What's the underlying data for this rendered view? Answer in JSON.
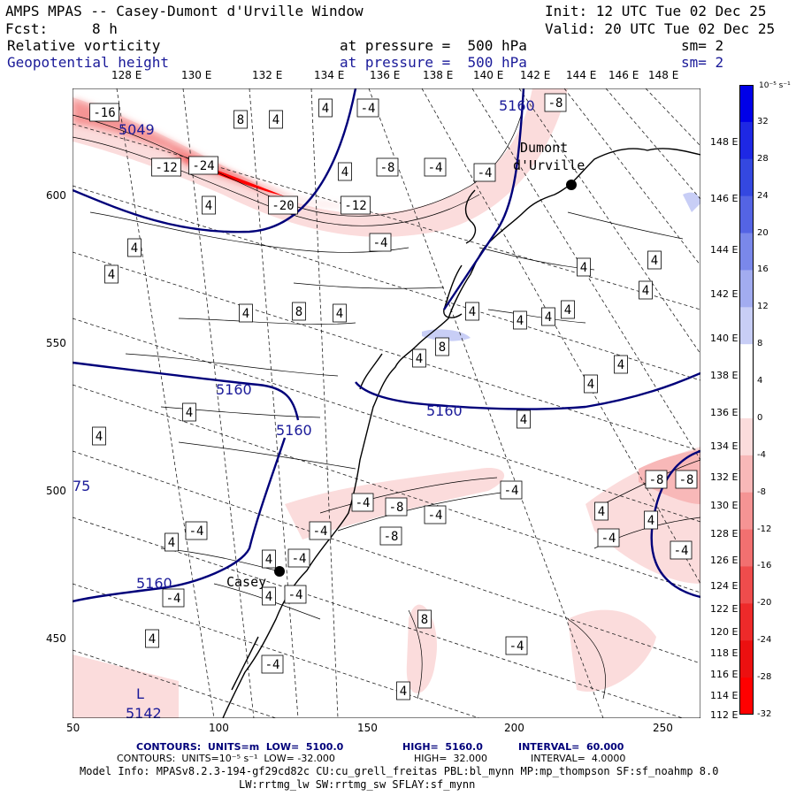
{
  "header": {
    "title": "AMPS MPAS -- Casey-Dumont d'Urville Window",
    "init": "Init: 12 UTC Tue 02 Dec 25",
    "fcst_label": "Fcst:",
    "fcst_value": "8 h",
    "valid": "Valid: 20 UTC Tue 02 Dec 25",
    "field1": "Relative vorticity",
    "field1_level": "at pressure =  500 hPa",
    "field1_sm": "sm= 2",
    "field2": "Geopotential height",
    "field2_level": "at pressure =  500 hPa",
    "field2_sm": "sm= 2"
  },
  "lon_top": [
    "128 E",
    "130 E",
    "132 E",
    "134 E",
    "136 E",
    "138 E",
    "140 E",
    "142 E",
    "144 E",
    "146 E",
    "148 E"
  ],
  "lon_right": [
    "148 E",
    "146 E",
    "144 E",
    "142 E",
    "140 E",
    "138 E",
    "136 E",
    "134 E",
    "132 E",
    "130 E",
    "128 E",
    "126 E",
    "124 E",
    "122 E",
    "120 E",
    "118 E",
    "116 E",
    "114 E",
    "112 E"
  ],
  "x_ticks": [
    "50",
    "100",
    "150",
    "200",
    "250"
  ],
  "y_ticks": [
    "600",
    "550",
    "500",
    "450"
  ],
  "legend": {
    "units": "10⁻⁵ s⁻¹",
    "labels": [
      "32",
      "28",
      "24",
      "20",
      "16",
      "12",
      "8",
      "4",
      "0",
      "-4",
      "-8",
      "-12",
      "-16",
      "-20",
      "-24",
      "-28",
      "-32"
    ],
    "colors": [
      "#0000e8",
      "#1e28e4",
      "#3448e0",
      "#5464e4",
      "#7a88ea",
      "#a2acf0",
      "#c8cef6",
      "#ffffff",
      "#ffffff",
      "#fbdcdc",
      "#f8b8b8",
      "#f59494",
      "#f27070",
      "#ef4c4c",
      "#ee2a2a",
      "#ec1010",
      "#ff0000"
    ]
  },
  "places": {
    "dumont": "Dumont",
    "durville": "d'Urville",
    "casey": "Casey"
  },
  "contour_labels": {
    "h5160_a": "5160",
    "h5160_b": "5160",
    "h5160_c": "5160",
    "h5160_d": "5160",
    "h5160_e": "5160",
    "h5049": "5049",
    "h5142": "5142",
    "h75": "75",
    "low": "L"
  },
  "vort_boxes": [
    "-16",
    "-12",
    "-24",
    "-20",
    "-12",
    "8",
    "4",
    "4",
    "-4",
    "-8",
    "-4",
    "-8",
    "4",
    "4",
    "-4",
    "-4",
    "4",
    "4",
    "4",
    "8",
    "4",
    "4",
    "4",
    "4",
    "4",
    "4",
    "8",
    "4",
    "4",
    "4",
    "4",
    "4",
    "4",
    "4",
    "4",
    "4",
    "-4",
    "-8",
    "-8",
    "-4",
    "-8",
    "-4",
    "-4",
    "-8",
    "-4",
    "-4",
    "-4",
    "4",
    "4",
    "4",
    "-4",
    "-4",
    "-4",
    "4",
    "-4",
    "4",
    "8",
    "4",
    "-4"
  ],
  "footer": {
    "line1_a": "CONTOURS:  UNITS=m  LOW=  5100.0",
    "line1_b": "HIGH=  5160.0",
    "line1_c": "INTERVAL=  60.000",
    "line2_a": "CONTOURS:  UNITS=10⁻⁵ s⁻¹  LOW= -32.000",
    "line2_b": "HIGH=  32.000",
    "line2_c": "INTERVAL=  4.0000",
    "line3": "Model Info: MPASv8.2.3-194-gf29cd82c CU:cu_grell_freitas PBL:bl_mynn MP:mp_thompson SF:sf_noahmp 8.0",
    "line4": "LW:rrtmg_lw SW:rrtmg_sw SFLAY:sf_mynn"
  }
}
